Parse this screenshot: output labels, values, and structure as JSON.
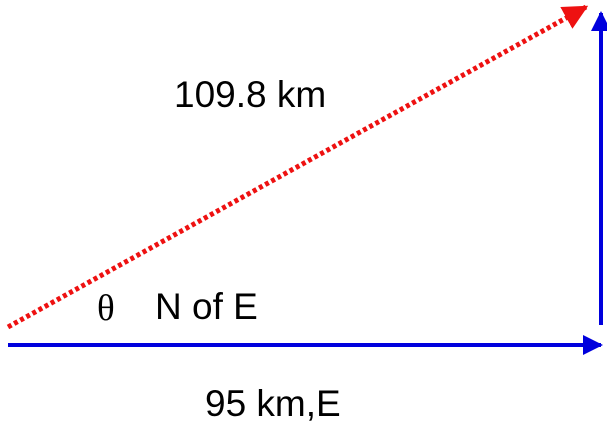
{
  "labels": {
    "resultant": "109.8 km",
    "angle_symbol": "θ",
    "angle_direction": "N of E",
    "east_leg": "95 km,E"
  },
  "colors": {
    "resultant": "#ee1111",
    "east_leg": "#0000dd",
    "north_leg": "#0000dd",
    "text": "#000000"
  }
}
